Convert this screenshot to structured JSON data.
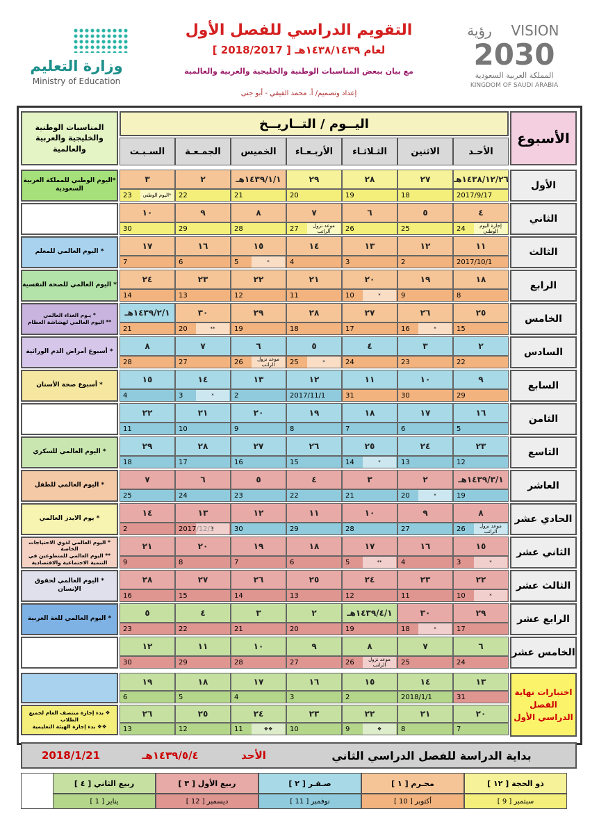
{
  "header": {
    "title": "التقويم الدراسي للفصل الأول",
    "subtitle": "لعام ١٤٣٨/١٤٣٩هـ [ 2018/2017 ]",
    "description": "مع بيان ببعض المناسبات الوطنية والخليجية والعربية والعالمية",
    "credit": "إعداد وتصميم/ أ. محمد الفيفي - أبو جنى",
    "ministry_ar": "وزارة التعليم",
    "ministry_en": "Ministry of Education",
    "vision_en": "VISION",
    "vision_ar": "رؤية",
    "vision_year": "2030",
    "kingdom_ar": "المملكة العربية السعودية",
    "kingdom_en": "KINGDOM OF SAUDI ARABIA"
  },
  "table": {
    "week_header": "الأسبوع",
    "date_header": "اليــوم / التــاريــخ",
    "events_header": "المناسبات الوطنية والخليجية والعربية والعالمية",
    "days": [
      "الأحـد",
      "الاثنين",
      "الثـلاثـاء",
      "الأربـعـاء",
      "الخميس",
      "الجمـعـة",
      "السـبـت"
    ],
    "weeks": [
      {
        "label": "الأول",
        "days": [
          {
            "hijri": "١٤٣٨/١٢/٢٦هـ",
            "greg": "2017/9/17"
          },
          {
            "hijri": "٢٧",
            "greg": "18"
          },
          {
            "hijri": "٢٨",
            "greg": "19"
          },
          {
            "hijri": "٢٩",
            "greg": "20"
          },
          {
            "hijri": "١٤٣٩/١/١هـ",
            "greg": "21"
          },
          {
            "hijri": "٢",
            "greg": "22"
          },
          {
            "hijri": "٣",
            "greg": "23",
            "note": "*اليوم الوطني"
          }
        ],
        "events": [
          "*اليوم الوطني للمملكة العربية السعودية"
        ]
      },
      {
        "label": "الثاني",
        "days": [
          {
            "hijri": "٤",
            "greg": "24",
            "note": "إجازة اليوم الوطني"
          },
          {
            "hijri": "٥",
            "greg": "25"
          },
          {
            "hijri": "٦",
            "greg": "26"
          },
          {
            "hijri": "٧",
            "greg": "27",
            "note": "موعد نزول الراتب"
          },
          {
            "hijri": "٨",
            "greg": "28"
          },
          {
            "hijri": "٩",
            "greg": "29"
          },
          {
            "hijri": "١٠",
            "greg": "30"
          }
        ]
      },
      {
        "label": "الثالث",
        "days": [
          {
            "hijri": "١١",
            "greg": "2017/10/1"
          },
          {
            "hijri": "١٢",
            "greg": "2"
          },
          {
            "hijri": "١٣",
            "greg": "3"
          },
          {
            "hijri": "١٤",
            "greg": "4"
          },
          {
            "hijri": "١٥",
            "greg": "5",
            "note": "*"
          },
          {
            "hijri": "١٦",
            "greg": "6"
          },
          {
            "hijri": "١٧",
            "greg": "7"
          }
        ],
        "events": [
          "* اليوم العالمي للمعلم"
        ]
      },
      {
        "label": "الرابع",
        "days": [
          {
            "hijri": "١٨",
            "greg": "8"
          },
          {
            "hijri": "١٩",
            "greg": "9"
          },
          {
            "hijri": "٢٠",
            "greg": "10",
            "note": "*"
          },
          {
            "hijri": "٢١",
            "greg": "11"
          },
          {
            "hijri": "٢٢",
            "greg": "12"
          },
          {
            "hijri": "٢٣",
            "greg": "13"
          },
          {
            "hijri": "٢٤",
            "greg": "14"
          }
        ],
        "events": [
          "* اليوم العالمي للصحة النفسية"
        ]
      },
      {
        "label": "الخامس",
        "days": [
          {
            "hijri": "٢٥",
            "greg": "15"
          },
          {
            "hijri": "٢٦",
            "greg": "16",
            "note": "*"
          },
          {
            "hijri": "٢٧",
            "greg": "17"
          },
          {
            "hijri": "٢٨",
            "greg": "18"
          },
          {
            "hijri": "٢٩",
            "greg": "19"
          },
          {
            "hijri": "٣٠",
            "greg": "20",
            "note": "**"
          },
          {
            "hijri": "١٤٣٩/٢/١هـ",
            "greg": "21"
          }
        ],
        "events": [
          "* يـوم الغذاء العالمي",
          "** اليوم العالمي لهشاشة العظام"
        ]
      },
      {
        "label": "السادس",
        "days": [
          {
            "hijri": "٢",
            "greg": "22"
          },
          {
            "hijri": "٣",
            "greg": "23"
          },
          {
            "hijri": "٤",
            "greg": "24"
          },
          {
            "hijri": "٥",
            "greg": "25",
            "note": "*"
          },
          {
            "hijri": "٦",
            "greg": "26",
            "note": "موعد نزول الراتب"
          },
          {
            "hijri": "٧",
            "greg": "27"
          },
          {
            "hijri": "٨",
            "greg": "28"
          }
        ],
        "events": [
          "* أسبوع أمراض الدم الوراثية"
        ]
      },
      {
        "label": "السابع",
        "days": [
          {
            "hijri": "٩",
            "greg": "29"
          },
          {
            "hijri": "١٠",
            "greg": "30"
          },
          {
            "hijri": "١١",
            "greg": "31"
          },
          {
            "hijri": "١٢",
            "greg": "2017/11/1"
          },
          {
            "hijri": "١٣",
            "greg": "2"
          },
          {
            "hijri": "١٤",
            "greg": "3",
            "note": "*"
          },
          {
            "hijri": "١٥",
            "greg": "4"
          }
        ],
        "events": [
          "* أسبوع صحة الأسنان"
        ]
      },
      {
        "label": "الثامن",
        "days": [
          {
            "hijri": "١٦",
            "greg": "5"
          },
          {
            "hijri": "١٧",
            "greg": "6"
          },
          {
            "hijri": "١٨",
            "greg": "7"
          },
          {
            "hijri": "١٩",
            "greg": "8"
          },
          {
            "hijri": "٢٠",
            "greg": "9"
          },
          {
            "hijri": "٢١",
            "greg": "10"
          },
          {
            "hijri": "٢٢",
            "greg": "11"
          }
        ]
      },
      {
        "label": "التاسع",
        "days": [
          {
            "hijri": "٢٣",
            "greg": "12"
          },
          {
            "hijri": "٢٤",
            "greg": "13"
          },
          {
            "hijri": "٢٥",
            "greg": "14",
            "note": "*"
          },
          {
            "hijri": "٢٦",
            "greg": "15"
          },
          {
            "hijri": "٢٧",
            "greg": "16"
          },
          {
            "hijri": "٢٨",
            "greg": "17"
          },
          {
            "hijri": "٢٩",
            "greg": "18"
          }
        ],
        "events": [
          "* اليوم العالمي للسكري"
        ]
      },
      {
        "label": "العاشر",
        "days": [
          {
            "hijri": "١٤٣٩/٣/١هـ",
            "greg": "19"
          },
          {
            "hijri": "٢",
            "greg": "20",
            "note": "*"
          },
          {
            "hijri": "٣",
            "greg": "21"
          },
          {
            "hijri": "٤",
            "greg": "22"
          },
          {
            "hijri": "٥",
            "greg": "23"
          },
          {
            "hijri": "٦",
            "greg": "24"
          },
          {
            "hijri": "٧",
            "greg": "25"
          }
        ],
        "events": [
          "* اليوم العالمي للطفل"
        ]
      },
      {
        "label": "الحادي عشر",
        "days": [
          {
            "hijri": "٨",
            "greg": "26",
            "note": "موعد نزول الراتب"
          },
          {
            "hijri": "٩",
            "greg": "27"
          },
          {
            "hijri": "١٠",
            "greg": "28"
          },
          {
            "hijri": "١١",
            "greg": "29"
          },
          {
            "hijri": "١٢",
            "greg": "30"
          },
          {
            "hijri": "١٣",
            "greg": "2017/12/1",
            "note": "*"
          },
          {
            "hijri": "١٤",
            "greg": "2"
          }
        ],
        "events": [
          "* يوم الايدز العالمي"
        ]
      },
      {
        "label": "الثاني عشر",
        "days": [
          {
            "hijri": "١٥",
            "greg": "3",
            "note": "*"
          },
          {
            "hijri": "١٦",
            "greg": "4"
          },
          {
            "hijri": "١٧",
            "greg": "5",
            "note": "**"
          },
          {
            "hijri": "١٨",
            "greg": "6"
          },
          {
            "hijri": "١٩",
            "greg": "7"
          },
          {
            "hijri": "٢٠",
            "greg": "8"
          },
          {
            "hijri": "٢١",
            "greg": "9"
          }
        ],
        "events": [
          "* اليوم العالمي لذوي الاحتياجات الخاصة",
          "** اليوم العالمي للمتطوعين في التنمية الاجتماعية والاقتصادية"
        ]
      },
      {
        "label": "الثالث عشر",
        "days": [
          {
            "hijri": "٢٢",
            "greg": "10",
            "note": "*"
          },
          {
            "hijri": "٢٣",
            "greg": "11"
          },
          {
            "hijri": "٢٤",
            "greg": "12"
          },
          {
            "hijri": "٢٥",
            "greg": "13"
          },
          {
            "hijri": "٢٦",
            "greg": "14"
          },
          {
            "hijri": "٢٧",
            "greg": "15"
          },
          {
            "hijri": "٢٨",
            "greg": "16"
          }
        ],
        "events": [
          "* اليوم العالمي لحقوق الإنسان"
        ]
      },
      {
        "label": "الرابع عشر",
        "days": [
          {
            "hijri": "٢٩",
            "greg": "17"
          },
          {
            "hijri": "٣٠",
            "greg": "18",
            "note": "*"
          },
          {
            "hijri": "١٤٣٩/٤/١هـ",
            "greg": "19"
          },
          {
            "hijri": "٢",
            "greg": "20"
          },
          {
            "hijri": "٣",
            "greg": "21"
          },
          {
            "hijri": "٤",
            "greg": "22"
          },
          {
            "hijri": "٥",
            "greg": "23"
          }
        ],
        "events": [
          "* اليوم العالمي للغة العربية"
        ]
      },
      {
        "label": "الخامس عشر",
        "days": [
          {
            "hijri": "٦",
            "greg": "24"
          },
          {
            "hijri": "٧",
            "greg": "25"
          },
          {
            "hijri": "٨",
            "greg": "26",
            "note": "موعد نزول الراتب"
          },
          {
            "hijri": "٩",
            "greg": "27"
          },
          {
            "hijri": "١٠",
            "greg": "28"
          },
          {
            "hijri": "١١",
            "greg": "29"
          },
          {
            "hijri": "١٢",
            "greg": "30"
          }
        ]
      }
    ],
    "exams": {
      "label": "اختبارات نهاية الفصل الدراسي الأول",
      "weeks": [
        {
          "days": [
            {
              "hijri": "١٣",
              "greg": "31"
            },
            {
              "hijri": "١٤",
              "greg": "2018/1/1"
            },
            {
              "hijri": "١٥",
              "greg": "2"
            },
            {
              "hijri": "١٦",
              "greg": "3"
            },
            {
              "hijri": "١٧",
              "greg": "4"
            },
            {
              "hijri": "١٨",
              "greg": "5"
            },
            {
              "hijri": "١٩",
              "greg": "6"
            }
          ]
        },
        {
          "days": [
            {
              "hijri": "٢٠",
              "greg": "7"
            },
            {
              "hijri": "٢١",
              "greg": "8"
            },
            {
              "hijri": "٢٢",
              "greg": "9",
              "note": "❖"
            },
            {
              "hijri": "٢٣",
              "greg": "10"
            },
            {
              "hijri": "٢٤",
              "greg": "11",
              "note": "❖❖"
            },
            {
              "hijri": "٢٥",
              "greg": "12"
            },
            {
              "hijri": "٢٦",
              "greg": "13"
            }
          ],
          "events": [
            "❖ بدء إجازة منتصف العام لجميع الطلاب",
            "❖❖ بدء إجازة الهيئة التعليمية"
          ]
        }
      ]
    }
  },
  "footer": {
    "text": "بداية الدراسة للفصل الدراسي الثاني",
    "day": "الأحد",
    "hijri": "١٤٣٩/٥/٤هـ",
    "greg": "2018/1/21"
  },
  "legend": [
    {
      "hijri": "ذو الحجة [ ١٢ ]",
      "greg": "سبتمبر [ 9 ]"
    },
    {
      "hijri": "محـرم [ ١ ]",
      "greg": "أكتوبر [ 10 ]"
    },
    {
      "hijri": "صـفـر [ ٢ ]",
      "greg": "نوفمبر [ 11 ]"
    },
    {
      "hijri": "ربيع الأول [ ٣ ]",
      "greg": "ديسمبر [ 12 ]"
    },
    {
      "hijri": "ربيع الثاني [ ٤ ]",
      "greg": "يناير [ 1 ]"
    }
  ]
}
